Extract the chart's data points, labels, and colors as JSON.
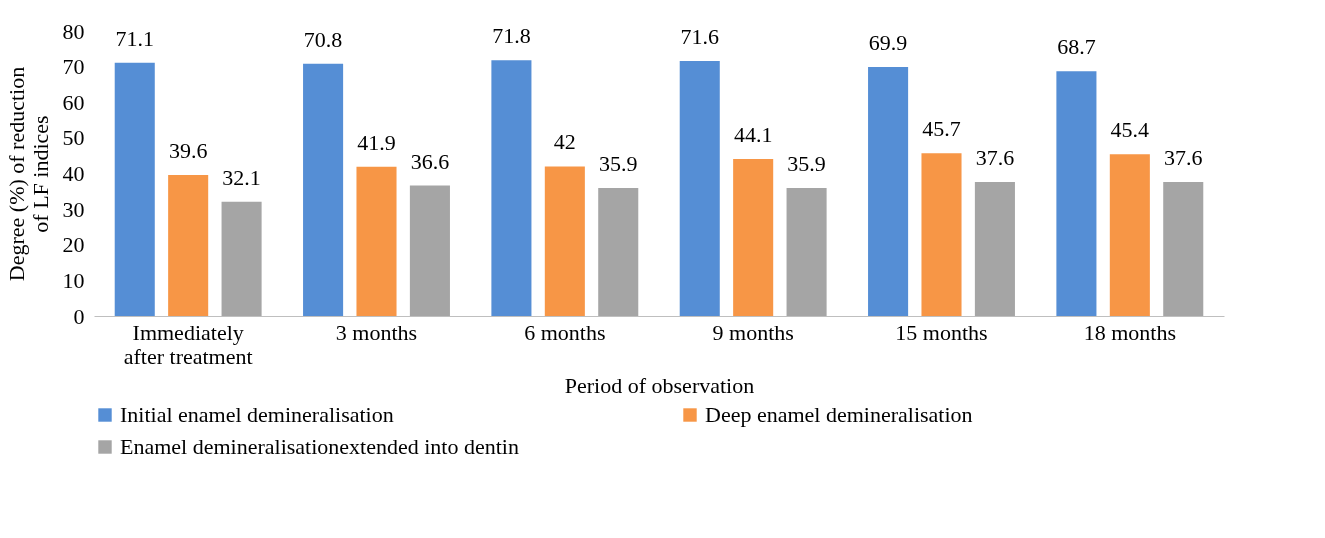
{
  "chart_data": {
    "type": "bar",
    "xlabel": "Period of observation",
    "ylabel": "Degree (%) of reduction\nof LF indices",
    "categories": [
      "Immediately\nafter treatment",
      "3 months",
      "6 months",
      "9 months",
      "15 months",
      "18 months"
    ],
    "series": [
      {
        "name": "Initial enamel demineralisation",
        "color": "#558ed5",
        "values": [
          71.1,
          70.8,
          71.8,
          71.6,
          69.9,
          68.7
        ]
      },
      {
        "name": "Deep enamel demineralisation",
        "color": "#f79646",
        "values": [
          39.6,
          41.9,
          42,
          44.1,
          45.7,
          45.4
        ]
      },
      {
        "name": "Enamel demineralisationextended into dentin",
        "color": "#a5a5a5",
        "values": [
          32.1,
          36.6,
          35.9,
          35.9,
          37.6,
          37.6
        ]
      }
    ],
    "ylim": [
      0,
      80
    ],
    "yticks": [
      0,
      10,
      20,
      30,
      40,
      50,
      60,
      70,
      80
    ],
    "grid": false,
    "legend": "bottom",
    "data_labels": true
  }
}
